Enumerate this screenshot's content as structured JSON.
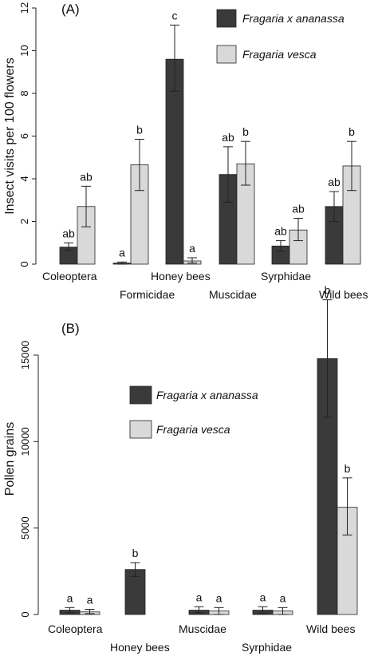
{
  "chart_data": [
    {
      "type": "bar",
      "panel_label": "(A)",
      "ylabel": "Insect visits per 100 flowers",
      "ylim": [
        0,
        12
      ],
      "yticks": [
        "0",
        "2",
        "4",
        "6",
        "8",
        "10",
        "12"
      ],
      "categories": [
        "Coleoptera",
        "Formicidae",
        "Honey bees",
        "Muscidae",
        "Syrphidae",
        "Wild bees"
      ],
      "series": [
        {
          "name": "Fragaria x ananassa",
          "color": "#3a3a3a",
          "values": [
            0.8,
            0.05,
            9.6,
            4.2,
            0.85,
            2.7
          ],
          "err_low": [
            0.65,
            0.0,
            8.1,
            2.9,
            0.6,
            2.0
          ],
          "err_high": [
            1.0,
            0.1,
            11.2,
            5.5,
            1.1,
            3.4
          ],
          "letters": [
            "ab",
            "a",
            "c",
            "ab",
            "ab",
            "ab"
          ]
        },
        {
          "name": "Fragaria vesca",
          "color": "#d9d9d9",
          "values": [
            2.7,
            4.65,
            0.15,
            4.7,
            1.6,
            4.6
          ],
          "err_low": [
            1.75,
            3.45,
            0.05,
            3.7,
            1.1,
            3.45
          ],
          "err_high": [
            3.65,
            5.85,
            0.3,
            5.75,
            2.15,
            5.75
          ],
          "letters": [
            "ab",
            "b",
            "a",
            "b",
            "ab",
            "b"
          ]
        }
      ],
      "legend_position": "top-right",
      "grid": false
    },
    {
      "type": "bar",
      "panel_label": "(B)",
      "ylabel": "Pollen grains",
      "ylim": [
        0,
        18000
      ],
      "yticks": [
        "0",
        "5000",
        "10000",
        "15000"
      ],
      "categories": [
        "Coleoptera",
        "Honey bees",
        "Muscidae",
        "Syrphidae",
        "Wild bees"
      ],
      "series": [
        {
          "name": "Fragaria x ananassa",
          "color": "#3a3a3a",
          "values": [
            250,
            2600,
            250,
            250,
            14800
          ],
          "err_low": [
            100,
            2200,
            100,
            50,
            11400
          ],
          "err_high": [
            400,
            3000,
            450,
            450,
            18200
          ],
          "letters": [
            "a",
            "b",
            "a",
            "a",
            "b"
          ]
        },
        {
          "name": "Fragaria vesca",
          "color": "#d9d9d9",
          "values": [
            150,
            null,
            200,
            200,
            6200
          ],
          "err_low": [
            50,
            null,
            0,
            0,
            4600
          ],
          "err_high": [
            300,
            null,
            400,
            400,
            7900
          ],
          "letters": [
            "a",
            "",
            "a",
            "a",
            "b"
          ]
        }
      ],
      "legend_position": "top-center",
      "grid": false
    }
  ]
}
